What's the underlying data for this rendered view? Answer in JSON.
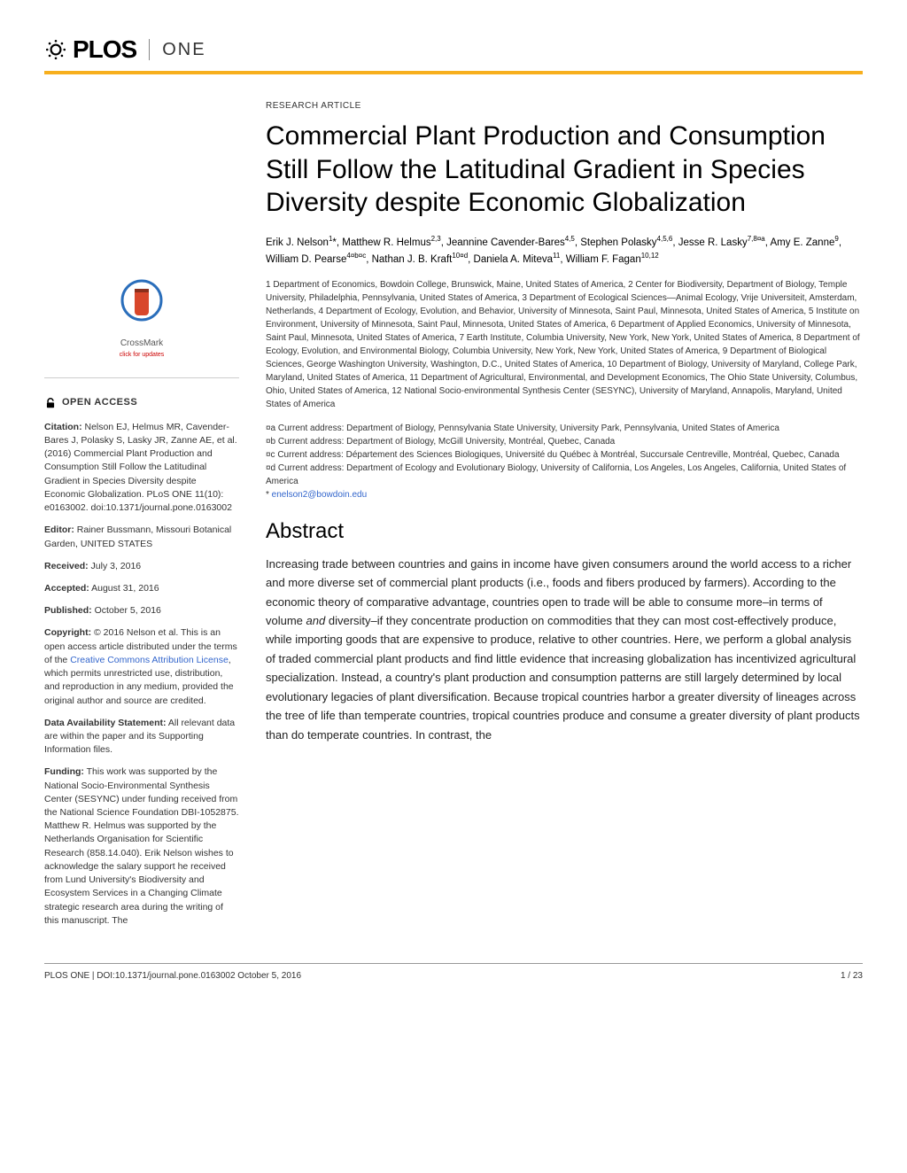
{
  "journal": {
    "brand": "PLOS",
    "sub": "ONE"
  },
  "article_type": "RESEARCH ARTICLE",
  "title": "Commercial Plant Production and Consumption Still Follow the Latitudinal Gradient in Species Diversity despite Economic Globalization",
  "authors_html": "Erik J. Nelson<sup>1</sup>*, Matthew R. Helmus<sup>2,3</sup>, Jeannine Cavender-Bares<sup>4,5</sup>, Stephen Polasky<sup>4,5,6</sup>, Jesse R. Lasky<sup>7,8¤a</sup>, Amy E. Zanne<sup>9</sup>, William D. Pearse<sup>4¤b¤c</sup>, Nathan J. B. Kraft<sup>10¤d</sup>, Daniela A. Miteva<sup>11</sup>, William F. Fagan<sup>10,12</sup>",
  "affiliations": "1 Department of Economics, Bowdoin College, Brunswick, Maine, United States of America, 2 Center for Biodiversity, Department of Biology, Temple University, Philadelphia, Pennsylvania, United States of America, 3 Department of Ecological Sciences—Animal Ecology, Vrije Universiteit, Amsterdam, Netherlands, 4 Department of Ecology, Evolution, and Behavior, University of Minnesota, Saint Paul, Minnesota, United States of America, 5 Institute on Environment, University of Minnesota, Saint Paul, Minnesota, United States of America, 6 Department of Applied Economics, University of Minnesota, Saint Paul, Minnesota, United States of America, 7 Earth Institute, Columbia University, New York, New York, United States of America, 8 Department of Ecology, Evolution, and Environmental Biology, Columbia University, New York, New York, United States of America, 9 Department of Biological Sciences, George Washington University, Washington, D.C., United States of America, 10 Department of Biology, University of Maryland, College Park, Maryland, United States of America, 11 Department of Agricultural, Environmental, and Development Economics, The Ohio State University, Columbus, Ohio, United States of America, 12 National Socio-environmental Synthesis Center (SESYNC), University of Maryland, Annapolis, Maryland, United States of America",
  "current_addr": {
    "a": "¤a Current address: Department of Biology, Pennsylvania State University, University Park, Pennsylvania, United States of America",
    "b": "¤b Current address: Department of Biology, McGill University, Montréal, Quebec, Canada",
    "c": "¤c Current address: Département des Sciences Biologiques, Université du Québec à Montréal, Succursale Centreville, Montréal, Quebec, Canada",
    "d": "¤d Current address: Department of Ecology and Evolutionary Biology, University of California, Los Angeles, Los Angeles, California, United States of America",
    "email_prefix": "* ",
    "email": "enelson2@bowdoin.edu"
  },
  "abstract": {
    "heading": "Abstract",
    "text": "Increasing trade between countries and gains in income have given consumers around the world access to a richer and more diverse set of commercial plant products (i.e., foods and fibers produced by farmers). According to the economic theory of comparative advantage, countries open to trade will be able to consume more–in terms of volume and diversity–if they concentrate production on commodities that they can most cost-effectively produce, while importing goods that are expensive to produce, relative to other countries. Here, we perform a global analysis of traded commercial plant products and find little evidence that increasing globalization has incentivized agricultural specialization. Instead, a country's plant production and consumption patterns are still largely determined by local evolutionary legacies of plant diversification. Because tropical countries harbor a greater diversity of lineages across the tree of life than temperate countries, tropical countries produce and consume a greater diversity of plant products than do temperate countries. In contrast, the"
  },
  "sidebar": {
    "crossmark": {
      "label": "CrossMark",
      "sub": "click for updates"
    },
    "open_access": "OPEN ACCESS",
    "citation_label": "Citation:",
    "citation": " Nelson EJ, Helmus MR, Cavender-Bares J, Polasky S, Lasky JR, Zanne AE, et al. (2016) Commercial Plant Production and Consumption Still Follow the Latitudinal Gradient in Species Diversity despite Economic Globalization. PLoS ONE 11(10): e0163002. doi:10.1371/journal.pone.0163002",
    "editor_label": "Editor:",
    "editor": " Rainer Bussmann, Missouri Botanical Garden, UNITED STATES",
    "received_label": "Received:",
    "received": " July 3, 2016",
    "accepted_label": "Accepted:",
    "accepted": " August 31, 2016",
    "published_label": "Published:",
    "published": " October 5, 2016",
    "copyright_label": "Copyright:",
    "copyright_pre": " © 2016 Nelson et al. This is an open access article distributed under the terms of the ",
    "copyright_link": "Creative Commons Attribution License",
    "copyright_post": ", which permits unrestricted use, distribution, and reproduction in any medium, provided the original author and source are credited.",
    "data_label": "Data Availability Statement:",
    "data": " All relevant data are within the paper and its Supporting Information files.",
    "funding_label": "Funding:",
    "funding": " This work was supported by the National Socio-Environmental Synthesis Center (SESYNC) under funding received from the National Science Foundation DBI-1052875. Matthew R. Helmus was supported by the Netherlands Organisation for Scientific Research (858.14.040). Erik Nelson wishes to acknowledge the salary support he received from Lund University's Biodiversity and Ecosystem Services in a Changing Climate strategic research area during the writing of this manuscript. The"
  },
  "footer": {
    "left": "PLOS ONE | DOI:10.1371/journal.pone.0163002    October 5, 2016",
    "right": "1 / 23"
  },
  "colors": {
    "accent_bar": "#f7af1e",
    "link": "#3366cc",
    "crossmark_ring": "#2a6ebb",
    "crossmark_fill": "#d8472b"
  }
}
